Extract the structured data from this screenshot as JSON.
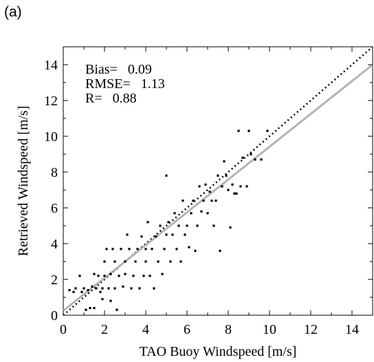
{
  "panel_label": "(a)",
  "chart_data": {
    "type": "scatter",
    "xlabel": "TAO Buoy Windspeed [m/s]",
    "ylabel": "Retrieved Windspeed [m/s]",
    "xlim": [
      0,
      15
    ],
    "ylim": [
      0,
      15
    ],
    "xticks": [
      0,
      2,
      4,
      6,
      8,
      10,
      12,
      14
    ],
    "yticks": [
      0,
      2,
      4,
      6,
      8,
      10,
      12,
      14
    ],
    "grid": false,
    "stats": [
      "Bias=   0.09",
      "RMSE=   1.13",
      "R=   0.88"
    ],
    "reference_lines": [
      {
        "style": "dotted",
        "color": "#000000",
        "points": [
          [
            0,
            0
          ],
          [
            15,
            15
          ]
        ]
      },
      {
        "style": "solid",
        "color": "#b3b3b3",
        "points": [
          [
            0,
            0.25
          ],
          [
            15,
            14.0
          ]
        ]
      }
    ],
    "points": [
      [
        0.3,
        1.4
      ],
      [
        0.5,
        1.3
      ],
      [
        0.6,
        1.5
      ],
      [
        0.8,
        2.2
      ],
      [
        0.9,
        1.3
      ],
      [
        1.0,
        1.5
      ],
      [
        1.1,
        0.3
      ],
      [
        1.2,
        1.4
      ],
      [
        1.3,
        0.4
      ],
      [
        1.4,
        1.6
      ],
      [
        1.5,
        0.4
      ],
      [
        1.5,
        2.3
      ],
      [
        1.6,
        1.5
      ],
      [
        1.7,
        2.2
      ],
      [
        1.8,
        1.3
      ],
      [
        1.9,
        0.9
      ],
      [
        1.9,
        1.5
      ],
      [
        2.0,
        2.2
      ],
      [
        2.0,
        3.0
      ],
      [
        2.1,
        3.7
      ],
      [
        2.2,
        1.5
      ],
      [
        2.3,
        2.3
      ],
      [
        2.3,
        0.8
      ],
      [
        2.4,
        3.7
      ],
      [
        2.5,
        3.0
      ],
      [
        2.5,
        1.5
      ],
      [
        2.6,
        0.3
      ],
      [
        2.7,
        2.2
      ],
      [
        2.8,
        3.7
      ],
      [
        2.9,
        1.6
      ],
      [
        3.0,
        2.3
      ],
      [
        3.0,
        3.0
      ],
      [
        3.1,
        4.5
      ],
      [
        3.2,
        3.7
      ],
      [
        3.3,
        1.5
      ],
      [
        3.4,
        2.2
      ],
      [
        3.5,
        3.0
      ],
      [
        3.6,
        3.7
      ],
      [
        3.7,
        1.5
      ],
      [
        3.8,
        4.4
      ],
      [
        3.9,
        2.2
      ],
      [
        4.0,
        3.0
      ],
      [
        4.0,
        3.7
      ],
      [
        4.1,
        5.2
      ],
      [
        4.2,
        2.2
      ],
      [
        4.3,
        3.7
      ],
      [
        4.4,
        1.5
      ],
      [
        4.5,
        4.4
      ],
      [
        4.6,
        3.0
      ],
      [
        4.7,
        5.0
      ],
      [
        4.8,
        2.3
      ],
      [
        4.9,
        3.7
      ],
      [
        5.0,
        4.5
      ],
      [
        5.0,
        7.8
      ],
      [
        5.1,
        5.2
      ],
      [
        5.2,
        3.0
      ],
      [
        5.3,
        4.5
      ],
      [
        5.4,
        5.7
      ],
      [
        5.5,
        3.7
      ],
      [
        5.6,
        5.0
      ],
      [
        5.7,
        3.0
      ],
      [
        5.8,
        6.4
      ],
      [
        5.9,
        4.5
      ],
      [
        6.0,
        5.0
      ],
      [
        6.1,
        3.8
      ],
      [
        6.2,
        5.7
      ],
      [
        6.3,
        6.4
      ],
      [
        6.4,
        3.6
      ],
      [
        6.5,
        5.0
      ],
      [
        6.6,
        7.2
      ],
      [
        6.7,
        5.8
      ],
      [
        6.8,
        6.4
      ],
      [
        6.9,
        7.3
      ],
      [
        7.0,
        5.7
      ],
      [
        7.1,
        6.9
      ],
      [
        7.2,
        6.4
      ],
      [
        7.3,
        5.0
      ],
      [
        7.4,
        6.4
      ],
      [
        7.5,
        7.8
      ],
      [
        7.6,
        3.6
      ],
      [
        7.7,
        7.2
      ],
      [
        7.8,
        8.6
      ],
      [
        7.9,
        7.8
      ],
      [
        8.0,
        7.0
      ],
      [
        8.1,
        4.9
      ],
      [
        8.2,
        7.3
      ],
      [
        8.3,
        6.8
      ],
      [
        8.4,
        6.8
      ],
      [
        8.5,
        10.3
      ],
      [
        8.6,
        7.2
      ],
      [
        8.7,
        8.8
      ],
      [
        8.9,
        7.2
      ],
      [
        9.0,
        10.3
      ],
      [
        9.1,
        9.0
      ],
      [
        9.3,
        8.7
      ],
      [
        9.6,
        8.7
      ],
      [
        9.9,
        10.3
      ]
    ]
  }
}
